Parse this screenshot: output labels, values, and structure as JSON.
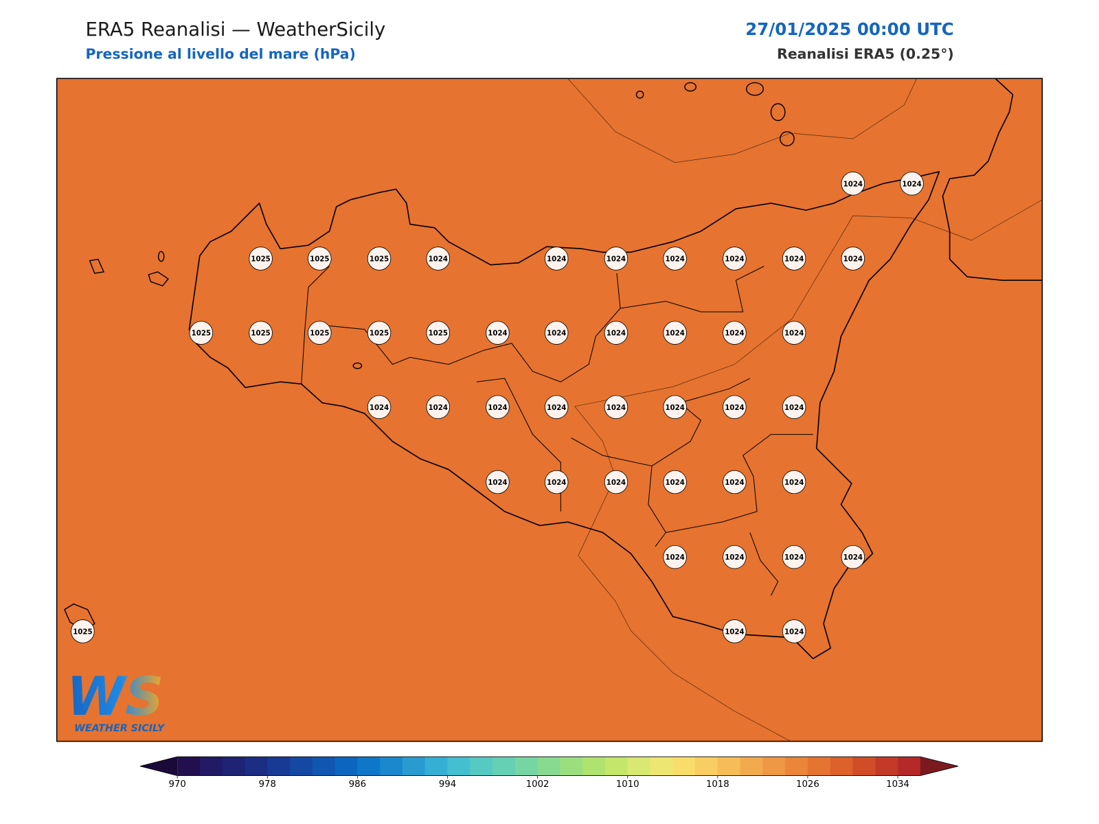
{
  "header": {
    "title": "ERA5 Reanalisi — WeatherSicily",
    "subtitle": "Pressione al livello del mare (hPa)",
    "datetime": "27/01/2025 00:00 UTC",
    "source": "Reanalisi ERA5 (0.25°)"
  },
  "map_colors": {
    "field_high": "#e6732f",
    "field_low": "#ec8a3a",
    "station_fill": "#fdf3ee"
  },
  "stations": [
    1024,
    1024,
    1025,
    1025,
    1025,
    1024,
    1024,
    1024,
    1024,
    1024,
    1024,
    1024,
    1025,
    1025,
    1025,
    1025,
    1025,
    1024,
    1024,
    1024,
    1024,
    1024,
    1024,
    1024,
    1024,
    1024,
    1024,
    1024,
    1024,
    1024,
    1024,
    1024,
    1024,
    1024,
    1024,
    1024,
    1024,
    1024,
    1024,
    1024,
    1024,
    1025,
    1024,
    1024
  ],
  "colorbar": {
    "lim": [
      970,
      1036
    ],
    "ticks": [
      970,
      978,
      986,
      994,
      1002,
      1010,
      1018,
      1026,
      1034
    ],
    "colors": [
      "#22104e",
      "#231a66",
      "#1e2374",
      "#1b2e84",
      "#183a94",
      "#1548a3",
      "#1156b0",
      "#0c66be",
      "#0f77c7",
      "#1a88cd",
      "#299bd1",
      "#36afd4",
      "#44bfd0",
      "#56c9c3",
      "#66d0b4",
      "#76d6a3",
      "#88da90",
      "#9bde7f",
      "#b0e26f",
      "#c4e66b",
      "#d8e872",
      "#eee673",
      "#f8dd6b",
      "#f8cd62",
      "#f5bc58",
      "#f2aa4e",
      "#ee9744",
      "#eb853a",
      "#e67431",
      "#dd612a",
      "#d04d28",
      "#c33a28",
      "#b52a29"
    ],
    "under_color": "#1a0a3a",
    "over_color": "#7a1a1f"
  },
  "logo": {
    "mark": "WS",
    "text": "WEATHER SICILY"
  }
}
